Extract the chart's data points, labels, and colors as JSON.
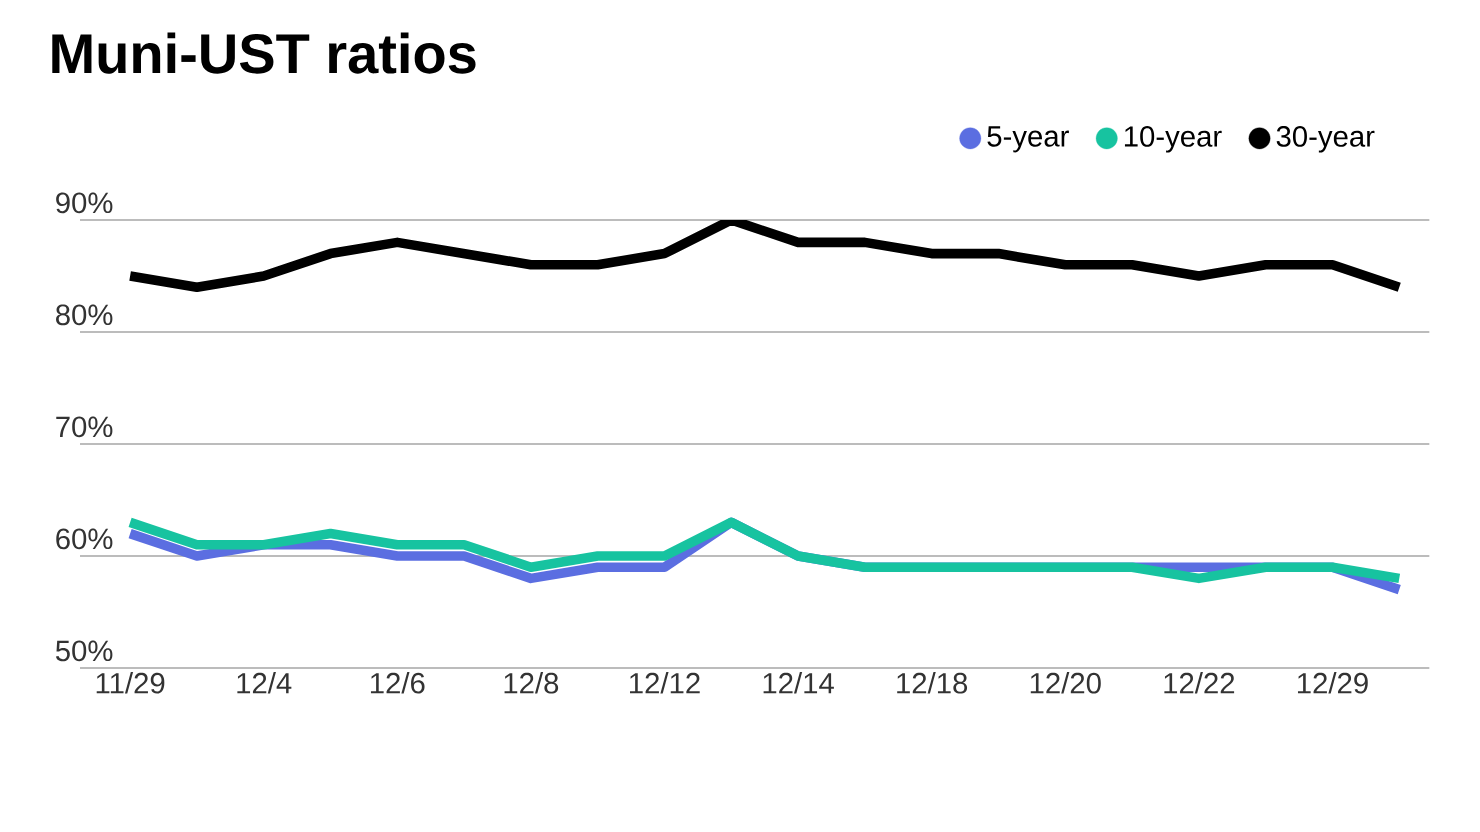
{
  "chart_data": {
    "type": "line",
    "title": "Muni-UST ratios",
    "categories": [
      "11/29",
      null,
      "12/4",
      null,
      "12/6",
      null,
      "12/8",
      null,
      "12/12",
      null,
      "12/14",
      null,
      "12/18",
      null,
      "12/20",
      null,
      "12/22",
      null,
      "12/29",
      null
    ],
    "series": [
      {
        "name": "5-year",
        "color": "#5b6ee1",
        "values": [
          62,
          60,
          61,
          61,
          60,
          60,
          58,
          59,
          59,
          63,
          60,
          59,
          59,
          59,
          59,
          59,
          59,
          59,
          59,
          57
        ]
      },
      {
        "name": "10-year",
        "color": "#17c3a0",
        "values": [
          63,
          61,
          61,
          62,
          61,
          61,
          59,
          60,
          60,
          63,
          60,
          59,
          59,
          59,
          59,
          59,
          58,
          59,
          59,
          58
        ]
      },
      {
        "name": "30-year",
        "color": "#000000",
        "values": [
          85,
          84,
          85,
          87,
          88,
          87,
          86,
          86,
          87,
          90,
          88,
          88,
          87,
          87,
          86,
          86,
          85,
          86,
          86,
          84
        ]
      }
    ],
    "ylim": [
      50,
      90
    ],
    "yticks": [
      {
        "value": 50,
        "label": "50%"
      },
      {
        "value": 60,
        "label": "60%"
      },
      {
        "value": 70,
        "label": "70%"
      },
      {
        "value": 80,
        "label": "80%"
      },
      {
        "value": 90,
        "label": "90%"
      }
    ],
    "grid": "y",
    "legend": "top right"
  }
}
